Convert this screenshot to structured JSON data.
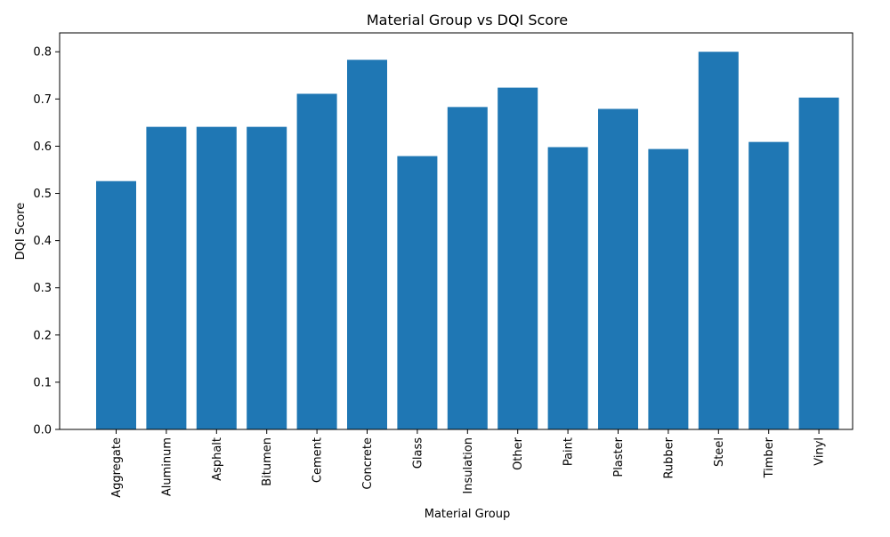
{
  "chart_data": {
    "type": "bar",
    "title": "Material Group vs DQI Score",
    "xlabel": "Material Group",
    "ylabel": "DQI Score",
    "categories": [
      "Aggregate",
      "Aluminum",
      "Asphalt",
      "Bitumen",
      "Cement",
      "Concrete",
      "Glass",
      "Insulation",
      "Other",
      "Paint",
      "Plaster",
      "Rubber",
      "Steel",
      "Timber",
      "Vinyl"
    ],
    "values": [
      0.526,
      0.641,
      0.641,
      0.641,
      0.711,
      0.783,
      0.579,
      0.683,
      0.724,
      0.598,
      0.679,
      0.594,
      0.8,
      0.609,
      0.703
    ],
    "ylim": [
      0,
      0.84
    ],
    "yticks": [
      0.0,
      0.1,
      0.2,
      0.3,
      0.4,
      0.5,
      0.6,
      0.7,
      0.8
    ],
    "ytick_labels": [
      "0.0",
      "0.1",
      "0.2",
      "0.3",
      "0.4",
      "0.5",
      "0.6",
      "0.7",
      "0.8"
    ],
    "bar_color": "#1f77b4",
    "grid": false,
    "legend": "none"
  }
}
